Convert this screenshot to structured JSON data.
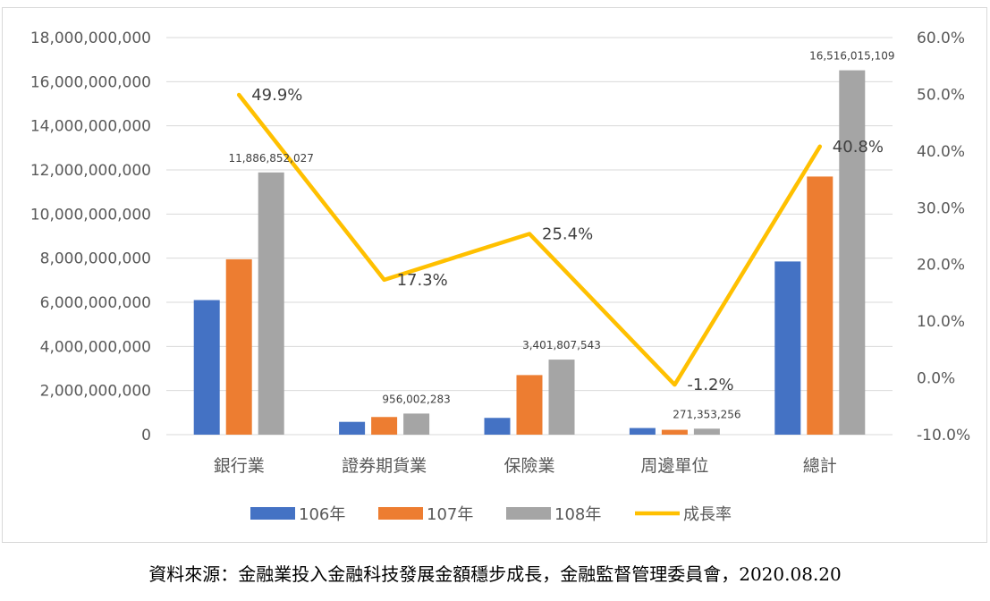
{
  "chart_data": {
    "type": "bar",
    "categories": [
      "銀行業",
      "證券期貨業",
      "保險業",
      "周邊單位",
      "總計"
    ],
    "series": [
      {
        "name": "106年",
        "color": "#4472C4",
        "values": [
          6100000000,
          580000000,
          760000000,
          300000000,
          7850000000
        ]
      },
      {
        "name": "107年",
        "color": "#ED7D31",
        "values": [
          7950000000,
          800000000,
          2700000000,
          220000000,
          11700000000
        ]
      },
      {
        "name": "108年",
        "color": "#A5A5A5",
        "values": [
          11886852027,
          956002283,
          3401807543,
          271353256,
          16516015109
        ]
      }
    ],
    "bar_value_labels": [
      "11,886,852,027",
      "956,002,283",
      "3,401,807,543",
      "271,353,256",
      "16,516,015,109"
    ],
    "line_series": {
      "name": "成長率",
      "color": "#FFC000",
      "values": [
        49.9,
        17.3,
        25.4,
        -1.2,
        40.8
      ],
      "labels": [
        "49.9%",
        "17.3%",
        "25.4%",
        "-1.2%",
        "40.8%"
      ]
    },
    "ylim": [
      0,
      18000000000
    ],
    "y_ticks": [
      0,
      2000000000,
      4000000000,
      6000000000,
      8000000000,
      10000000000,
      12000000000,
      14000000000,
      16000000000,
      18000000000
    ],
    "y_tick_labels": [
      "0",
      "2,000,000,000",
      "4,000,000,000",
      "6,000,000,000",
      "8,000,000,000",
      "10,000,000,000",
      "12,000,000,000",
      "14,000,000,000",
      "16,000,000,000",
      "18,000,000,000"
    ],
    "y2lim": [
      -10,
      60
    ],
    "y2_ticks": [
      -10,
      0,
      10,
      20,
      30,
      40,
      50,
      60
    ],
    "y2_tick_labels": [
      "-10.0%",
      "0.0%",
      "10.0%",
      "20.0%",
      "30.0%",
      "40.0%",
      "50.0%",
      "60.0%"
    ],
    "grid": true,
    "legend_position": "bottom"
  },
  "source_text": "資料來源：金融業投入金融科技發展金額穩步成長，金融監督管理委員會，2020.08.20"
}
